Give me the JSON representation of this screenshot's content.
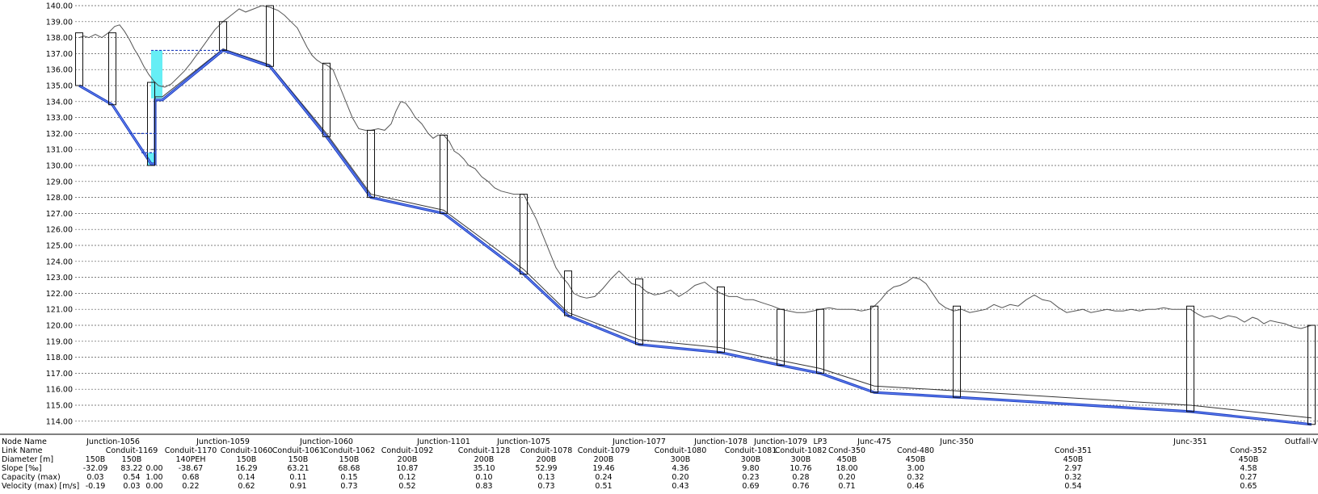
{
  "y_axis": {
    "min": 114.0,
    "max": 140.0,
    "ticks": [
      "114.00",
      "115.00",
      "116.00",
      "117.00",
      "118.00",
      "119.00",
      "120.00",
      "121.00",
      "122.00",
      "123.00",
      "124.00",
      "125.00",
      "126.00",
      "127.00",
      "128.00",
      "129.00",
      "130.00",
      "131.00",
      "132.00",
      "133.00",
      "134.00",
      "135.00",
      "136.00",
      "137.00",
      "138.00",
      "139.00",
      "140.00"
    ]
  },
  "colors": {
    "grid": "#555555",
    "terrain": "#555555",
    "pipe": "#1f3fbf",
    "pipe_light": "#6f8fff",
    "water": "#66eef5",
    "manhole": "#111111"
  },
  "table": {
    "row_labels": [
      "Node Name",
      "Link Name",
      "Diameter [m]",
      "Slope [‰]",
      "Capacity (max)",
      "Velocity (max) [m/s]"
    ],
    "nodes": [
      "Junction-1056",
      "Junction-1059",
      "Junction-1060",
      "Junction-1101",
      "Junction-1075",
      "Junction-1077",
      "Junction-1078",
      "Junction-1079",
      "LP3",
      "Junc-475",
      "Junc-350",
      "Junc-351",
      "Outfall-Vu"
    ],
    "links": [
      {
        "name": "",
        "diameter": "150B",
        "slope": "-32.09",
        "capacity": "0.03",
        "velocity": "-0.19"
      },
      {
        "name": "Conduit-1169",
        "diameter": "150B",
        "slope": "83.22",
        "capacity": "0.54",
        "velocity": "0.03"
      },
      {
        "name": "",
        "diameter": "",
        "slope": "0.00",
        "capacity": "1.00",
        "velocity": "0.00"
      },
      {
        "name": "Conduit-1170",
        "diameter": "140PEH",
        "slope": "-38.67",
        "capacity": "0.68",
        "velocity": "0.22"
      },
      {
        "name": "Conduit-1060",
        "diameter": "150B",
        "slope": "16.29",
        "capacity": "0.14",
        "velocity": "0.62"
      },
      {
        "name": "Conduit-1061",
        "diameter": "150B",
        "slope": "63.21",
        "capacity": "0.11",
        "velocity": "0.91"
      },
      {
        "name": "Conduit-1062",
        "diameter": "150B",
        "slope": "68.68",
        "capacity": "0.15",
        "velocity": "0.73"
      },
      {
        "name": "Conduit-1092",
        "diameter": "200B",
        "slope": "10.87",
        "capacity": "0.12",
        "velocity": "0.52"
      },
      {
        "name": "Conduit-1128",
        "diameter": "200B",
        "slope": "35.10",
        "capacity": "0.10",
        "velocity": "0.83"
      },
      {
        "name": "Conduit-1078",
        "diameter": "200B",
        "slope": "52.99",
        "capacity": "0.13",
        "velocity": "0.73"
      },
      {
        "name": "Conduit-1079",
        "diameter": "200B",
        "slope": "19.46",
        "capacity": "0.24",
        "velocity": "0.51"
      },
      {
        "name": "Conduit-1080",
        "diameter": "300B",
        "slope": "4.36",
        "capacity": "0.20",
        "velocity": "0.43"
      },
      {
        "name": "Conduit-1081",
        "diameter": "300B",
        "slope": "9.80",
        "capacity": "0.23",
        "velocity": "0.69"
      },
      {
        "name": "Conduit-1082",
        "diameter": "300B",
        "slope": "10.76",
        "capacity": "0.28",
        "velocity": "0.76"
      },
      {
        "name": "Cond-350",
        "diameter": "450B",
        "slope": "18.00",
        "capacity": "0.20",
        "velocity": "0.71"
      },
      {
        "name": "Cond-480",
        "diameter": "450B",
        "slope": "3.00",
        "capacity": "0.32",
        "velocity": "0.46"
      },
      {
        "name": "Cond-351",
        "diameter": "450B",
        "slope": "2.97",
        "capacity": "0.32",
        "velocity": "0.54"
      },
      {
        "name": "Cond-352",
        "diameter": "450B",
        "slope": "4.58",
        "capacity": "0.27",
        "velocity": "0.65"
      }
    ]
  },
  "manholes": [
    {
      "x": 98,
      "top": 138.3,
      "invert": 135.0
    },
    {
      "x": 139,
      "top": 138.3,
      "invert": 133.8
    },
    {
      "x": 187,
      "top": 135.2,
      "invert": 130.0
    },
    {
      "x": 276,
      "top": 139.0,
      "invert": 137.2
    },
    {
      "x": 334,
      "top": 140.0,
      "invert": 136.2
    },
    {
      "x": 404,
      "top": 136.4,
      "invert": 131.8
    },
    {
      "x": 459,
      "top": 132.2,
      "invert": 128.0
    },
    {
      "x": 549,
      "top": 131.9,
      "invert": 127.0
    },
    {
      "x": 648,
      "top": 128.2,
      "invert": 123.2
    },
    {
      "x": 703,
      "top": 123.4,
      "invert": 120.6
    },
    {
      "x": 791,
      "top": 122.9,
      "invert": 118.8
    },
    {
      "x": 892,
      "top": 122.4,
      "invert": 118.3
    },
    {
      "x": 966,
      "top": 121.0,
      "invert": 117.5
    },
    {
      "x": 1015,
      "top": 121.0,
      "invert": 117.0
    },
    {
      "x": 1082,
      "top": 121.2,
      "invert": 115.8
    },
    {
      "x": 1184,
      "top": 121.2,
      "invert": 115.5
    },
    {
      "x": 1473,
      "top": 121.2,
      "invert": 114.6
    },
    {
      "x": 1623,
      "top": 120.0,
      "invert": 113.8
    }
  ],
  "pipe_path": [
    [
      98,
      135.0
    ],
    [
      139,
      133.8
    ],
    [
      187,
      130.1
    ],
    [
      192,
      130.1
    ],
    [
      192,
      134.1
    ],
    [
      201,
      134.1
    ],
    [
      276,
      137.2
    ],
    [
      334,
      136.2
    ],
    [
      404,
      131.8
    ],
    [
      459,
      128.0
    ],
    [
      549,
      127.0
    ],
    [
      648,
      123.2
    ],
    [
      703,
      120.6
    ],
    [
      791,
      118.8
    ],
    [
      892,
      118.3
    ],
    [
      966,
      117.5
    ],
    [
      1015,
      117.0
    ],
    [
      1082,
      115.8
    ],
    [
      1184,
      115.5
    ],
    [
      1473,
      114.6
    ],
    [
      1623,
      113.8
    ]
  ],
  "crown_path": [
    [
      187,
      131.0
    ],
    [
      192,
      131.0
    ],
    [
      192,
      134.3
    ],
    [
      201,
      134.3
    ],
    [
      276,
      137.3
    ],
    [
      334,
      136.3
    ],
    [
      404,
      132.0
    ],
    [
      459,
      128.2
    ],
    [
      549,
      127.2
    ],
    [
      648,
      123.5
    ],
    [
      703,
      120.8
    ],
    [
      791,
      119.1
    ],
    [
      892,
      118.6
    ],
    [
      966,
      117.8
    ],
    [
      1015,
      117.3
    ],
    [
      1082,
      116.2
    ],
    [
      1184,
      115.9
    ],
    [
      1473,
      115.0
    ],
    [
      1623,
      114.2
    ]
  ],
  "water_level_dashed": [
    {
      "x1": 187,
      "x2": 276,
      "y": 137.2
    },
    {
      "x1": 160,
      "x2": 192,
      "y": 132.0
    },
    {
      "x1": 175,
      "x2": 192,
      "y": 130.8
    }
  ],
  "water_fill": [
    {
      "x1": 187,
      "x2": 201,
      "y_top": 137.2,
      "y_bot": 134.2
    },
    {
      "x1": 182,
      "x2": 192,
      "y_top": 130.8,
      "y_bot": 130.0
    }
  ],
  "terrain": [
    [
      98,
      138.0
    ],
    [
      104,
      138.1
    ],
    [
      110,
      138.0
    ],
    [
      118,
      138.2
    ],
    [
      126,
      138.0
    ],
    [
      134,
      138.3
    ],
    [
      142,
      138.7
    ],
    [
      148,
      138.8
    ],
    [
      154,
      138.4
    ],
    [
      160,
      137.9
    ],
    [
      166,
      137.3
    ],
    [
      172,
      136.8
    ],
    [
      178,
      136.2
    ],
    [
      184,
      135.7
    ],
    [
      190,
      135.3
    ],
    [
      196,
      135.0
    ],
    [
      204,
      134.9
    ],
    [
      212,
      135.1
    ],
    [
      220,
      135.5
    ],
    [
      228,
      135.9
    ],
    [
      236,
      136.4
    ],
    [
      246,
      137.1
    ],
    [
      256,
      137.8
    ],
    [
      266,
      138.5
    ],
    [
      276,
      139.0
    ],
    [
      286,
      139.4
    ],
    [
      296,
      139.8
    ],
    [
      304,
      139.6
    ],
    [
      314,
      139.8
    ],
    [
      324,
      140.0
    ],
    [
      334,
      139.9
    ],
    [
      344,
      139.7
    ],
    [
      352,
      139.4
    ],
    [
      360,
      139.0
    ],
    [
      368,
      138.6
    ],
    [
      374,
      138.0
    ],
    [
      380,
      137.4
    ],
    [
      386,
      136.9
    ],
    [
      392,
      136.6
    ],
    [
      398,
      136.4
    ],
    [
      404,
      136.3
    ],
    [
      412,
      136.0
    ],
    [
      420,
      135.0
    ],
    [
      428,
      134.0
    ],
    [
      436,
      133.0
    ],
    [
      444,
      132.3
    ],
    [
      452,
      132.2
    ],
    [
      459,
      132.2
    ],
    [
      468,
      132.3
    ],
    [
      476,
      132.2
    ],
    [
      484,
      132.6
    ],
    [
      490,
      133.4
    ],
    [
      496,
      134.0
    ],
    [
      502,
      133.9
    ],
    [
      508,
      133.5
    ],
    [
      514,
      133.0
    ],
    [
      522,
      132.6
    ],
    [
      530,
      132.0
    ],
    [
      536,
      131.7
    ],
    [
      542,
      131.9
    ],
    [
      549,
      131.9
    ],
    [
      556,
      131.5
    ],
    [
      562,
      130.9
    ],
    [
      568,
      130.7
    ],
    [
      574,
      130.4
    ],
    [
      580,
      130.0
    ],
    [
      588,
      129.8
    ],
    [
      596,
      129.3
    ],
    [
      604,
      129.0
    ],
    [
      612,
      128.6
    ],
    [
      620,
      128.4
    ],
    [
      628,
      128.3
    ],
    [
      636,
      128.2
    ],
    [
      644,
      128.2
    ],
    [
      648,
      128.2
    ],
    [
      656,
      127.4
    ],
    [
      664,
      126.6
    ],
    [
      672,
      125.6
    ],
    [
      680,
      124.6
    ],
    [
      688,
      123.6
    ],
    [
      696,
      123.0
    ],
    [
      703,
      122.6
    ],
    [
      710,
      122.0
    ],
    [
      718,
      121.8
    ],
    [
      726,
      121.7
    ],
    [
      736,
      121.8
    ],
    [
      746,
      122.3
    ],
    [
      756,
      122.9
    ],
    [
      766,
      123.4
    ],
    [
      774,
      123.0
    ],
    [
      782,
      122.6
    ],
    [
      791,
      122.5
    ],
    [
      800,
      122.1
    ],
    [
      810,
      121.9
    ],
    [
      820,
      122.0
    ],
    [
      830,
      122.2
    ],
    [
      840,
      121.8
    ],
    [
      850,
      122.1
    ],
    [
      860,
      122.5
    ],
    [
      872,
      122.7
    ],
    [
      882,
      122.3
    ],
    [
      892,
      122.0
    ],
    [
      902,
      121.8
    ],
    [
      912,
      121.8
    ],
    [
      922,
      121.6
    ],
    [
      932,
      121.6
    ],
    [
      944,
      121.4
    ],
    [
      956,
      121.2
    ],
    [
      966,
      121.0
    ],
    [
      976,
      120.9
    ],
    [
      986,
      120.8
    ],
    [
      996,
      120.8
    ],
    [
      1006,
      120.9
    ],
    [
      1015,
      121.0
    ],
    [
      1026,
      121.1
    ],
    [
      1036,
      121.0
    ],
    [
      1046,
      121.0
    ],
    [
      1056,
      121.0
    ],
    [
      1066,
      120.9
    ],
    [
      1076,
      121.0
    ],
    [
      1082,
      121.2
    ],
    [
      1090,
      121.6
    ],
    [
      1098,
      122.1
    ],
    [
      1106,
      122.4
    ],
    [
      1114,
      122.5
    ],
    [
      1122,
      122.7
    ],
    [
      1130,
      123.0
    ],
    [
      1138,
      122.9
    ],
    [
      1146,
      122.6
    ],
    [
      1154,
      122.0
    ],
    [
      1162,
      121.4
    ],
    [
      1170,
      121.1
    ],
    [
      1180,
      120.9
    ],
    [
      1190,
      121.0
    ],
    [
      1200,
      120.8
    ],
    [
      1210,
      120.9
    ],
    [
      1220,
      121.0
    ],
    [
      1230,
      121.3
    ],
    [
      1240,
      121.1
    ],
    [
      1250,
      121.3
    ],
    [
      1260,
      121.2
    ],
    [
      1270,
      121.6
    ],
    [
      1280,
      121.9
    ],
    [
      1290,
      121.6
    ],
    [
      1300,
      121.5
    ],
    [
      1310,
      121.1
    ],
    [
      1320,
      120.8
    ],
    [
      1330,
      120.9
    ],
    [
      1340,
      121.0
    ],
    [
      1350,
      120.8
    ],
    [
      1360,
      120.9
    ],
    [
      1370,
      121.0
    ],
    [
      1380,
      120.9
    ],
    [
      1390,
      120.9
    ],
    [
      1400,
      121.0
    ],
    [
      1410,
      120.9
    ],
    [
      1420,
      121.0
    ],
    [
      1430,
      121.0
    ],
    [
      1440,
      121.1
    ],
    [
      1450,
      121.0
    ],
    [
      1460,
      121.0
    ],
    [
      1473,
      121.0
    ],
    [
      1482,
      120.7
    ],
    [
      1490,
      120.5
    ],
    [
      1500,
      120.6
    ],
    [
      1510,
      120.4
    ],
    [
      1520,
      120.6
    ],
    [
      1530,
      120.5
    ],
    [
      1540,
      120.2
    ],
    [
      1550,
      120.5
    ],
    [
      1556,
      120.4
    ],
    [
      1564,
      120.1
    ],
    [
      1572,
      120.3
    ],
    [
      1580,
      120.2
    ],
    [
      1590,
      120.1
    ],
    [
      1600,
      119.9
    ],
    [
      1610,
      119.8
    ],
    [
      1623,
      120.0
    ]
  ]
}
